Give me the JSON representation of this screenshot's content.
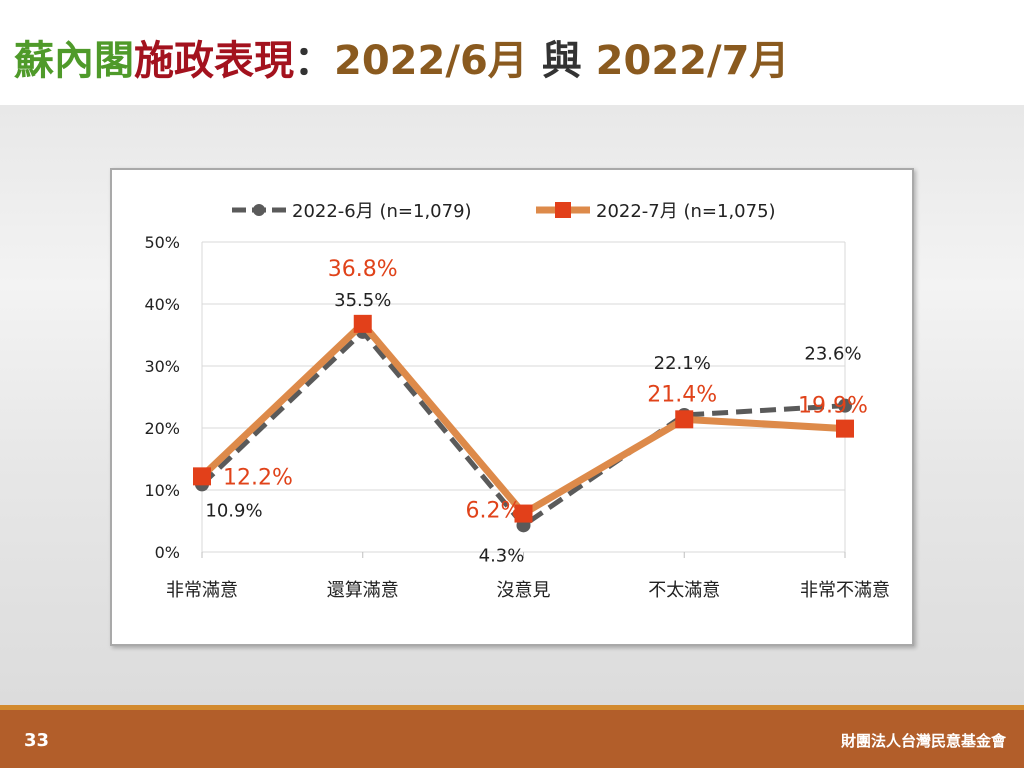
{
  "title": {
    "part1": "蘇內閣",
    "part2": "施政表現",
    "sep": "：",
    "part3": "2022/6月",
    "part4": "與",
    "part5": "2022/7月"
  },
  "footer": {
    "page_number": "33",
    "organization": "財團法人台灣民意基金會"
  },
  "chart_data": {
    "type": "line",
    "categories": [
      "非常滿意",
      "還算滿意",
      "沒意見",
      "不太滿意",
      "非常不滿意"
    ],
    "ylim": [
      0,
      50
    ],
    "yticks": [
      "0%",
      "10%",
      "20%",
      "30%",
      "40%",
      "50%"
    ],
    "grid": true,
    "legend": "top",
    "series": [
      {
        "name": "2022-6月  (n=1,079)",
        "values": [
          10.9,
          35.5,
          4.3,
          22.1,
          23.6
        ],
        "labels": [
          "10.9%",
          "35.5%",
          "4.3%",
          "22.1%",
          "23.6%"
        ],
        "color": "#5a5a5a",
        "style": "dashed",
        "marker": "circle"
      },
      {
        "name": "2022-7月  (n=1,075)",
        "values": [
          12.2,
          36.8,
          6.2,
          21.4,
          19.9
        ],
        "labels": [
          "12.2%",
          "36.8%",
          "6.2%",
          "21.4%",
          "19.9%"
        ],
        "color": "#dd8a4a",
        "label_color": "#e0431a",
        "style": "solid",
        "marker": "square"
      }
    ]
  }
}
